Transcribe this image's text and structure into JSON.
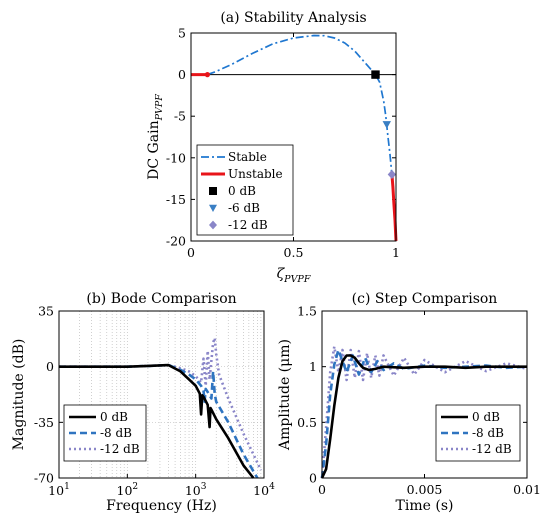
{
  "chart_data": [
    {
      "id": "a",
      "type": "line",
      "title": "(a) Stability Analysis",
      "xlabel": "ζ",
      "xlabel_sub": "PVPF",
      "ylabel": "DC Gain",
      "ylabel_sub": "PVPF",
      "xlim": [
        0,
        1
      ],
      "ylim": [
        -20,
        5
      ],
      "xticks": [
        0,
        0.5,
        1
      ],
      "xtick_labels": [
        "0",
        "0.5",
        "1"
      ],
      "yticks": [
        5,
        0,
        -5,
        -10,
        -15,
        -20
      ],
      "ytick_labels": [
        "5",
        "0",
        "-5",
        "-10",
        "-15",
        "-20"
      ],
      "grid": false,
      "legend": "bottom-left",
      "series": [
        {
          "name": "Stable",
          "color": "#1f77d0",
          "dash": "dashdot",
          "x": [
            0.08,
            0.12,
            0.2,
            0.3,
            0.4,
            0.5,
            0.6,
            0.65,
            0.7,
            0.75,
            0.8,
            0.85,
            0.9,
            0.92,
            0.94,
            0.95,
            0.96,
            0.97,
            0.98
          ],
          "y": [
            0.0,
            0.35,
            1.25,
            2.55,
            3.7,
            4.4,
            4.7,
            4.68,
            4.4,
            3.8,
            2.8,
            1.4,
            0.0,
            -0.9,
            -3.2,
            -5.0,
            -7.3,
            -9.5,
            -12.0
          ]
        },
        {
          "name": "Unstable",
          "color": "#e8141a",
          "dash": "solid",
          "x": [
            0,
            0.08
          ],
          "y": [
            0,
            0
          ]
        },
        {
          "name": "Unstable-b",
          "color": "#e8141a",
          "dash": "solid",
          "x": [
            0.98,
            0.985,
            0.99,
            0.995,
            0.998,
            1.0
          ],
          "y": [
            -12.0,
            -13.5,
            -15.5,
            -17.5,
            -19.0,
            -20.0
          ]
        },
        {
          "name": "Zero-line",
          "color": "#000000",
          "dash": "solid",
          "x": [
            0.08,
            1.0
          ],
          "y": [
            0,
            0
          ]
        }
      ],
      "markers": [
        {
          "name": "0 dB",
          "shape": "square",
          "color": "#000000",
          "x": 0.9,
          "y": 0
        },
        {
          "name": "-6 dB",
          "shape": "triangle-down",
          "color": "#3a7fc4",
          "x": 0.955,
          "y": -6
        },
        {
          "name": "-12 dB",
          "shape": "diamond",
          "color": "#8a86c8",
          "x": 0.98,
          "y": -12
        }
      ],
      "legend_entries": [
        "Stable",
        "Unstable",
        "0 dB",
        "-6 dB",
        "-12 dB"
      ]
    },
    {
      "id": "b",
      "type": "line",
      "title": "(b) Bode Comparison",
      "xlabel": "Frequency (Hz)",
      "ylabel": "Magnitude (dB)",
      "xscale": "log",
      "xlim": [
        10,
        10000
      ],
      "ylim": [
        -70,
        35
      ],
      "xtick_exponents": [
        "1",
        "2",
        "3",
        "4"
      ],
      "yticks": [
        35,
        0,
        -35,
        -70
      ],
      "ytick_labels": [
        "35",
        "0",
        "-35",
        "-70"
      ],
      "grid": true,
      "legend": "bottom-left",
      "series": [
        {
          "name": "0 dB",
          "color": "#000000",
          "dash": "solid",
          "x": [
            10,
            50,
            100,
            200,
            400,
            600,
            800,
            1000,
            1150,
            1200,
            1250,
            1300,
            1500,
            1600,
            1650,
            1700,
            2000,
            3000,
            5000,
            7000
          ],
          "y": [
            0,
            0,
            0,
            0.5,
            1,
            -3,
            -8,
            -12,
            -17,
            -30,
            -18,
            -19,
            -24,
            -38,
            -26,
            -27,
            -33,
            -45,
            -62,
            -70
          ]
        },
        {
          "name": "-8 dB",
          "color": "#2f74c0",
          "dash": "dash",
          "x": [
            10,
            50,
            100,
            200,
            400,
            600,
            800,
            1000,
            1200,
            1300,
            1350,
            1400,
            1500,
            1700,
            1800,
            1900,
            2000,
            3000,
            5000,
            8000
          ],
          "y": [
            0,
            0,
            0,
            0.5,
            1,
            -2,
            -5,
            -8,
            -12,
            -15,
            -22,
            -14,
            -16,
            -20,
            -3,
            -17,
            -22,
            -35,
            -55,
            -70
          ]
        },
        {
          "name": "-12 dB",
          "color": "#8a86c8",
          "dash": "dot",
          "x": [
            10,
            50,
            100,
            200,
            400,
            600,
            800,
            1000,
            1200,
            1300,
            1400,
            1500,
            1600,
            1800,
            1900,
            2000,
            2200,
            3000,
            5000,
            9000
          ],
          "y": [
            0,
            0,
            0,
            0.5,
            1,
            -1,
            -3,
            -6,
            -10,
            5,
            -12,
            10,
            -8,
            15,
            18,
            8,
            -5,
            -20,
            -42,
            -65
          ]
        }
      ]
    },
    {
      "id": "c",
      "type": "line",
      "title": "(c) Step Comparison",
      "xlabel": "Time (s)",
      "ylabel": "Amplitude (μm)",
      "xlim": [
        0,
        0.01
      ],
      "ylim": [
        0,
        1.5
      ],
      "xticks": [
        0,
        0.005,
        0.01
      ],
      "xtick_labels": [
        "0",
        "0.005",
        "0.01"
      ],
      "yticks": [
        1.5,
        1,
        0.5,
        0
      ],
      "ytick_labels": [
        "1.5",
        "1",
        "0.5",
        "0"
      ],
      "grid": false,
      "legend": "bottom-right",
      "series": [
        {
          "name": "0 dB",
          "color": "#000000",
          "dash": "solid",
          "x": [
            0,
            0.0002,
            0.0004,
            0.0006,
            0.0008,
            0.001,
            0.0012,
            0.0014,
            0.0016,
            0.0018,
            0.002,
            0.0023,
            0.0026,
            0.003,
            0.004,
            0.005,
            0.006,
            0.007,
            0.008,
            0.009,
            0.01
          ],
          "y": [
            0,
            0.08,
            0.35,
            0.65,
            0.9,
            1.05,
            1.1,
            1.1,
            1.08,
            1.03,
            0.99,
            0.97,
            0.98,
            1.0,
            0.99,
            1.0,
            1.0,
            0.99,
            1.0,
            1.0,
            1.0
          ]
        },
        {
          "name": "-8 dB",
          "color": "#2f74c0",
          "dash": "dash",
          "x": [
            0,
            0.0002,
            0.0004,
            0.0006,
            0.0008,
            0.001,
            0.0012,
            0.0015,
            0.0018,
            0.0021,
            0.0024,
            0.0027,
            0.003,
            0.0035,
            0.004,
            0.005,
            0.006,
            0.007,
            0.008,
            0.009,
            0.01
          ],
          "y": [
            0,
            0.3,
            0.75,
            1.02,
            1.15,
            1.05,
            0.95,
            1.1,
            0.93,
            1.08,
            0.95,
            1.05,
            0.97,
            1.03,
            0.98,
            1.01,
            0.99,
            1.0,
            1.01,
            0.99,
            1.0
          ]
        },
        {
          "name": "-12 dB",
          "color": "#8a86c8",
          "dash": "dot",
          "x": [
            0,
            0.0002,
            0.0004,
            0.0006,
            0.0008,
            0.001,
            0.0012,
            0.0014,
            0.0016,
            0.0018,
            0.002,
            0.0022,
            0.0024,
            0.0026,
            0.0028,
            0.003,
            0.0035,
            0.004,
            0.0045,
            0.005,
            0.006,
            0.007,
            0.008,
            0.009,
            0.01
          ],
          "y": [
            0,
            0.45,
            0.95,
            1.18,
            0.95,
            1.15,
            0.88,
            1.15,
            0.9,
            1.14,
            0.88,
            1.12,
            0.9,
            1.1,
            0.92,
            1.1,
            0.92,
            1.08,
            0.93,
            1.06,
            0.95,
            1.05,
            0.96,
            1.03,
            0.98
          ]
        }
      ]
    }
  ]
}
